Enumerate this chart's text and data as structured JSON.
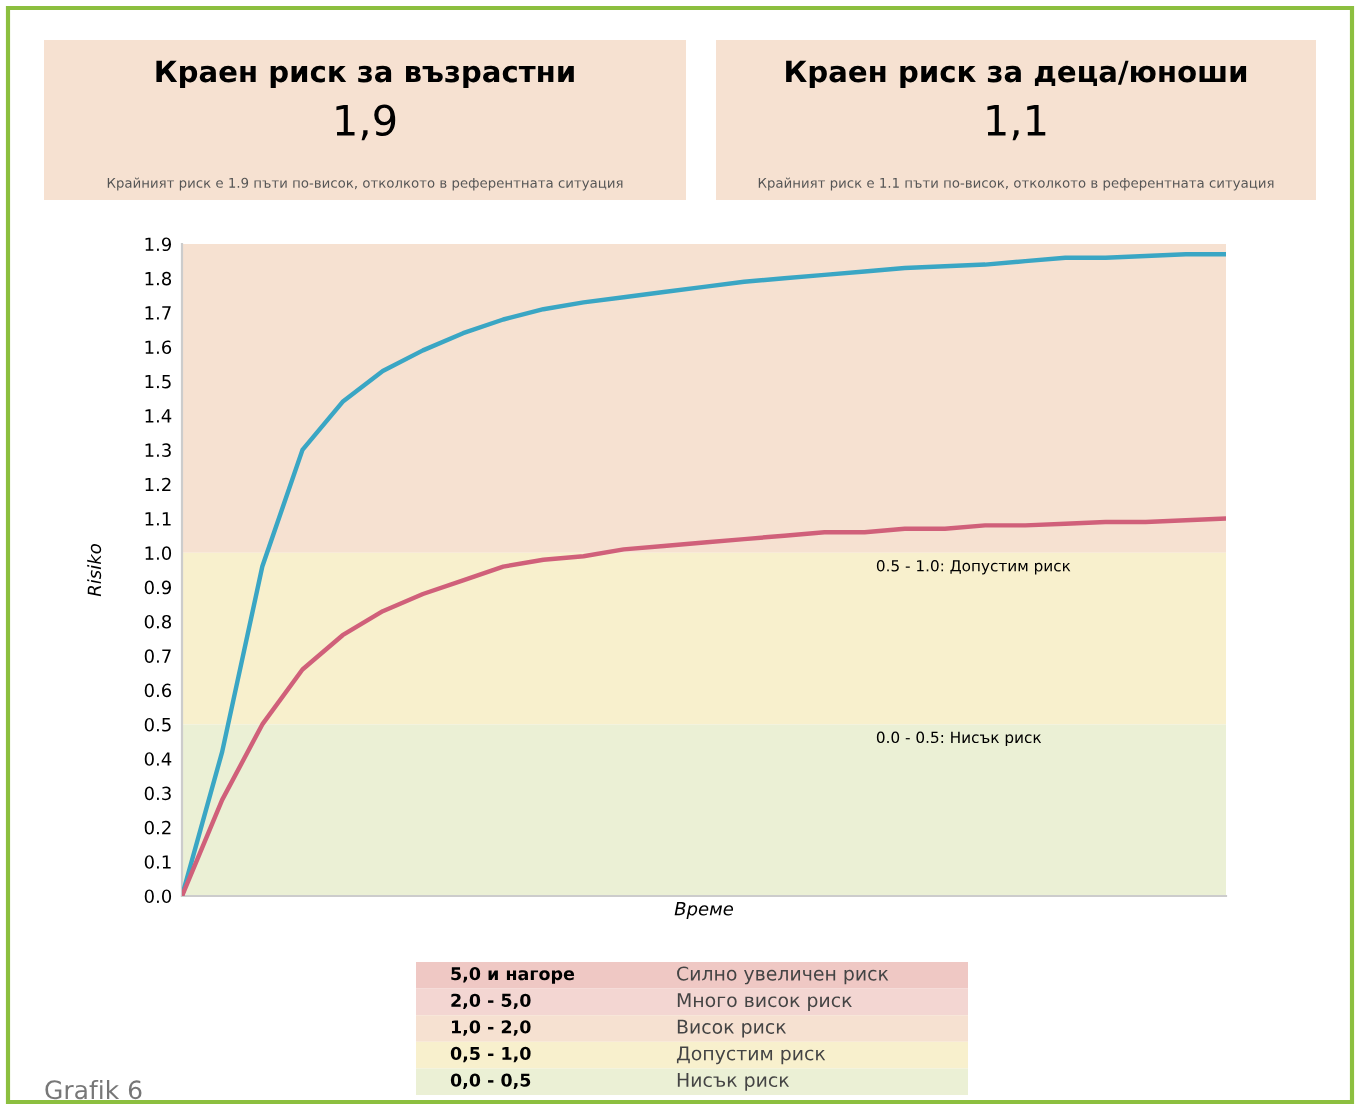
{
  "chart_data": {
    "type": "line",
    "xlabel": "Време",
    "ylabel": "Risiko",
    "categories": [
      null,
      null,
      null,
      null,
      null,
      null,
      null,
      null,
      null,
      null,
      null,
      null,
      null,
      null,
      null,
      null,
      null,
      null,
      null,
      null,
      null,
      null,
      null,
      null,
      null,
      null,
      null
    ],
    "series": [
      {
        "color": "#3aa6c4",
        "values": [
          0,
          0.42,
          0.96,
          1.3,
          1.44,
          1.53,
          1.59,
          1.64,
          1.68,
          1.71,
          1.73,
          1.745,
          1.76,
          1.775,
          1.79,
          1.8,
          1.81,
          1.82,
          1.83,
          1.835,
          1.84,
          1.85,
          1.86,
          1.86,
          1.865,
          1.87,
          1.87
        ]
      },
      {
        "color": "#d0607a",
        "values": [
          0,
          0.28,
          0.5,
          0.66,
          0.76,
          0.83,
          0.88,
          0.92,
          0.96,
          0.98,
          0.99,
          1.01,
          1.02,
          1.03,
          1.04,
          1.05,
          1.06,
          1.06,
          1.07,
          1.07,
          1.08,
          1.08,
          1.085,
          1.09,
          1.09,
          1.095,
          1.1
        ]
      }
    ],
    "ylim": [
      0,
      1.9
    ],
    "yticks": [
      {
        "value": 0,
        "label": "0.0"
      },
      0.1,
      0.2,
      0.3,
      0.4,
      0.5,
      0.6,
      0.7,
      0.8,
      0.9,
      {
        "value": 1,
        "label": "1.0"
      },
      1.1,
      1.2,
      1.3,
      1.4,
      1.5,
      1.6,
      1.7,
      1.8,
      1.9
    ],
    "tick_labels": "y",
    "marker": "none",
    "line_style": "solid",
    "bands": [
      {
        "axis": "y",
        "from": 1.0,
        "to": 1.9,
        "label": null,
        "color": "#f6e1d1"
      },
      {
        "axis": "y",
        "from": 0.5,
        "to": 1.0,
        "label": "0.5 - 1.0: Допустим риск",
        "color": "#f8f0cd"
      },
      {
        "axis": "y",
        "from": 0.0,
        "to": 0.5,
        "label": "0.0 - 0.5: Нисък риск",
        "color": "#ebf0d5"
      }
    ],
    "annotations": [
      "Краен риск за възрастни",
      "1,9",
      "Крайният риск е 1.9 пъти по-висок, отколкото в референтната ситуация",
      "Краен риск за деца/юноши",
      "1,1",
      "Крайният риск е 1.1 пъти по-висок, отколкото в референтната ситуация",
      "5,0 и нагоре",
      "Силно увеличен риск",
      "2,0 - 5,0",
      "Много висок риск",
      "1,0 - 2,0",
      "Висок риск",
      "0,5 - 1,0",
      "Допустим риск",
      "0,0 - 0,5",
      "Нисък риск",
      "Grafik 6"
    ]
  }
}
